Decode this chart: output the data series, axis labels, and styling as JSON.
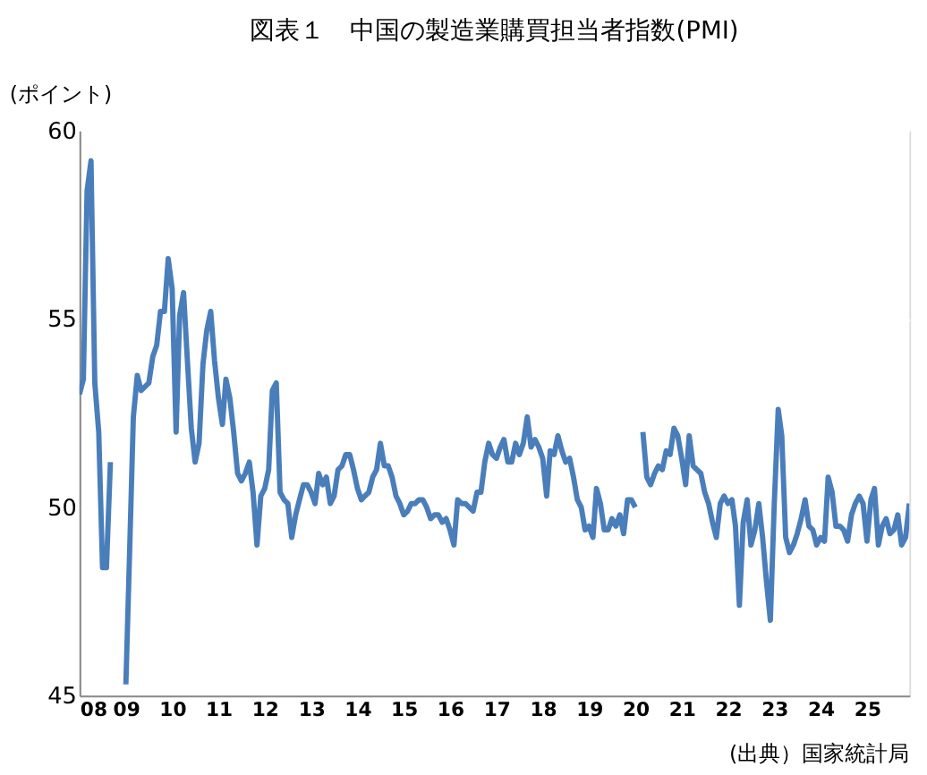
{
  "chart_data": {
    "type": "line",
    "title": "図表１　中国の製造業購買担当者指数(PMI)",
    "ylabel": "(ポイント)",
    "annotations": [
      "(出典）国家統計局"
    ],
    "x": [
      "2008-01",
      "2008-02",
      "2008-03",
      "2008-04",
      "2008-05",
      "2008-06",
      "2008-07",
      "2008-08",
      "2008-09",
      "2008-10",
      "2008-11",
      "2008-12",
      "2009-01",
      "2009-02",
      "2009-03",
      "2009-04",
      "2009-05",
      "2009-06",
      "2009-07",
      "2009-08",
      "2009-09",
      "2009-10",
      "2009-11",
      "2009-12",
      "2010-01",
      "2010-02",
      "2010-03",
      "2010-04",
      "2010-05",
      "2010-06",
      "2010-07",
      "2010-08",
      "2010-09",
      "2010-10",
      "2010-11",
      "2010-12",
      "2011-01",
      "2011-02",
      "2011-03",
      "2011-04",
      "2011-05",
      "2011-06",
      "2011-07",
      "2011-08",
      "2011-09",
      "2011-10",
      "2011-11",
      "2011-12",
      "2012-01",
      "2012-02",
      "2012-03",
      "2012-04",
      "2012-05",
      "2012-06",
      "2012-07",
      "2012-08",
      "2012-09",
      "2012-10",
      "2012-11",
      "2012-12",
      "2013-01",
      "2013-02",
      "2013-03",
      "2013-04",
      "2013-05",
      "2013-06",
      "2013-07",
      "2013-08",
      "2013-09",
      "2013-10",
      "2013-11",
      "2013-12",
      "2014-01",
      "2014-02",
      "2014-03",
      "2014-04",
      "2014-05",
      "2014-06",
      "2014-07",
      "2014-08",
      "2014-09",
      "2014-10",
      "2014-11",
      "2014-12",
      "2015-01",
      "2015-02",
      "2015-03",
      "2015-04",
      "2015-05",
      "2015-06",
      "2015-07",
      "2015-08",
      "2015-09",
      "2015-10",
      "2015-11",
      "2015-12",
      "2016-01",
      "2016-02",
      "2016-03",
      "2016-04",
      "2016-05",
      "2016-06",
      "2016-07",
      "2016-08",
      "2016-09",
      "2016-10",
      "2016-11",
      "2016-12",
      "2017-01",
      "2017-02",
      "2017-03",
      "2017-04",
      "2017-05",
      "2017-06",
      "2017-07",
      "2017-08",
      "2017-09",
      "2017-10",
      "2017-11",
      "2017-12",
      "2018-01",
      "2018-02",
      "2018-03",
      "2018-04",
      "2018-05",
      "2018-06",
      "2018-07",
      "2018-08",
      "2018-09",
      "2018-10",
      "2018-11",
      "2018-12",
      "2019-01",
      "2019-02",
      "2019-03",
      "2019-04",
      "2019-05",
      "2019-06",
      "2019-07",
      "2019-08",
      "2019-09",
      "2019-10",
      "2019-11",
      "2019-12",
      "2020-01",
      "2020-02",
      "2020-03",
      "2020-04",
      "2020-05",
      "2020-06",
      "2020-07",
      "2020-08",
      "2020-09",
      "2020-10",
      "2020-11",
      "2020-12",
      "2021-01",
      "2021-02",
      "2021-03",
      "2021-04",
      "2021-05",
      "2021-06",
      "2021-07",
      "2021-08",
      "2021-09",
      "2021-10",
      "2021-11",
      "2021-12",
      "2022-01",
      "2022-02",
      "2022-03",
      "2022-04",
      "2022-05",
      "2022-06",
      "2022-07",
      "2022-08",
      "2022-09",
      "2022-10",
      "2022-11",
      "2022-12",
      "2023-01",
      "2023-02",
      "2023-03",
      "2023-04",
      "2023-05",
      "2023-06",
      "2023-07",
      "2023-08",
      "2023-09",
      "2023-10",
      "2023-11",
      "2023-12",
      "2024-01",
      "2024-02",
      "2024-03",
      "2024-04",
      "2024-05",
      "2024-06",
      "2024-07",
      "2024-08",
      "2024-09",
      "2024-10",
      "2024-11",
      "2024-12",
      "2025-01",
      "2025-02",
      "2025-03",
      "2025-04",
      "2025-05",
      "2025-06",
      "2025-07",
      "2025-08",
      "2025-09",
      "2025-10",
      "2025-11",
      "2025-12"
    ],
    "series": [
      {
        "color": "#4a7ebb",
        "values": [
          53.0,
          53.4,
          58.4,
          59.2,
          53.3,
          52.0,
          48.4,
          48.4,
          51.2,
          null,
          null,
          null,
          45.3,
          49.0,
          52.4,
          53.5,
          53.1,
          53.2,
          53.3,
          54.0,
          54.3,
          55.2,
          55.2,
          56.6,
          55.8,
          52.0,
          55.1,
          55.7,
          53.9,
          52.1,
          51.2,
          51.7,
          53.8,
          54.7,
          55.2,
          53.9,
          52.9,
          52.2,
          53.4,
          52.9,
          52.0,
          50.9,
          50.7,
          50.9,
          51.2,
          50.4,
          49.0,
          50.3,
          50.5,
          51.0,
          53.1,
          53.3,
          50.4,
          50.2,
          50.1,
          49.2,
          49.8,
          50.2,
          50.6,
          50.6,
          50.4,
          50.1,
          50.9,
          50.6,
          50.8,
          50.1,
          50.3,
          51.0,
          51.1,
          51.4,
          51.4,
          51.0,
          50.5,
          50.2,
          50.3,
          50.4,
          50.8,
          51.0,
          51.7,
          51.1,
          51.1,
          50.8,
          50.3,
          50.1,
          49.8,
          49.9,
          50.1,
          50.1,
          50.2,
          50.2,
          50.0,
          49.7,
          49.8,
          49.8,
          49.6,
          49.7,
          49.4,
          49.0,
          50.2,
          50.1,
          50.1,
          50.0,
          49.9,
          50.4,
          50.4,
          51.2,
          51.7,
          51.4,
          51.3,
          51.6,
          51.8,
          51.2,
          51.2,
          51.7,
          51.4,
          51.7,
          52.4,
          51.6,
          51.8,
          51.6,
          51.3,
          50.3,
          51.5,
          51.4,
          51.9,
          51.5,
          51.2,
          51.3,
          50.8,
          50.2,
          50.0,
          49.4,
          49.5,
          49.2,
          50.5,
          50.1,
          49.4,
          49.4,
          49.7,
          49.5,
          49.8,
          49.3,
          50.2,
          50.2,
          50.0,
          null,
          52.0,
          50.8,
          50.6,
          50.9,
          51.1,
          51.0,
          51.5,
          51.4,
          52.1,
          51.9,
          51.3,
          50.6,
          51.9,
          51.1,
          51.0,
          50.9,
          50.4,
          50.1,
          49.6,
          49.2,
          50.1,
          50.3,
          50.1,
          50.2,
          49.5,
          47.4,
          49.6,
          50.2,
          49.0,
          49.4,
          50.1,
          49.2,
          48.0,
          47.0,
          50.1,
          52.6,
          51.9,
          49.2,
          48.8,
          49.0,
          49.3,
          49.7,
          50.2,
          49.5,
          49.4,
          49.0,
          49.2,
          49.1,
          50.8,
          50.4,
          49.5,
          49.5,
          49.4,
          49.1,
          49.8,
          50.1,
          50.3,
          50.1,
          49.1,
          50.2,
          50.5,
          49.0,
          49.5,
          49.7,
          49.3,
          49.4,
          49.8,
          49.0,
          49.2,
          50.1
        ]
      }
    ],
    "xlim": [
      "2008-01",
      "2025-12"
    ],
    "xticks": [
      {
        "value": "2008-01",
        "label": "08"
      },
      {
        "value": "2009-01",
        "label": "09"
      },
      {
        "value": "2010-01",
        "label": "10"
      },
      {
        "value": "2011-01",
        "label": "11"
      },
      {
        "value": "2012-01",
        "label": "12"
      },
      {
        "value": "2013-01",
        "label": "13"
      },
      {
        "value": "2014-01",
        "label": "14"
      },
      {
        "value": "2015-01",
        "label": "15"
      },
      {
        "value": "2016-01",
        "label": "16"
      },
      {
        "value": "2017-01",
        "label": "17"
      },
      {
        "value": "2018-01",
        "label": "18"
      },
      {
        "value": "2019-01",
        "label": "19"
      },
      {
        "value": "2020-01",
        "label": "20"
      },
      {
        "value": "2021-01",
        "label": "21"
      },
      {
        "value": "2022-01",
        "label": "22"
      },
      {
        "value": "2023-01",
        "label": "23"
      },
      {
        "value": "2024-01",
        "label": "24"
      },
      {
        "value": "2025-01",
        "label": "25"
      }
    ],
    "ylim": [
      45,
      60
    ],
    "yticks": [
      45,
      50,
      55,
      60
    ],
    "grid": "y",
    "legend": false,
    "marker": "none",
    "line_style": "solid"
  }
}
